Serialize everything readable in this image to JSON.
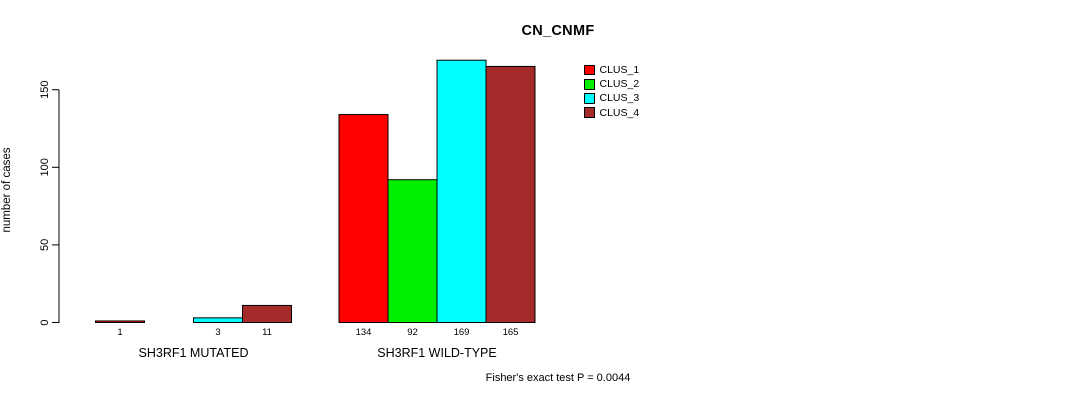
{
  "chart_data": {
    "type": "bar",
    "title": "CN_CNMF",
    "ylabel": "number of cases",
    "xlabel": "",
    "yticks": [
      0,
      50,
      100,
      150
    ],
    "ylim": [
      0,
      172
    ],
    "grid": false,
    "legend_position": "top-right",
    "series": [
      {
        "name": "CLUS_1",
        "color": "#FF0000"
      },
      {
        "name": "CLUS_2",
        "color": "#00EE00"
      },
      {
        "name": "CLUS_3",
        "color": "#00FFFF"
      },
      {
        "name": "CLUS_4",
        "color": "#A52A2A"
      }
    ],
    "groups": [
      {
        "label": "SH3RF1 MUTATED",
        "values": [
          1,
          0,
          3,
          11
        ],
        "bar_labels": [
          "1",
          "",
          "3",
          "11"
        ]
      },
      {
        "label": "SH3RF1 WILD-TYPE",
        "values": [
          134,
          92,
          169,
          165
        ],
        "bar_labels": [
          "134",
          "92",
          "169",
          "165"
        ]
      }
    ],
    "annotation": "Fisher's exact test P = 0.0044"
  }
}
